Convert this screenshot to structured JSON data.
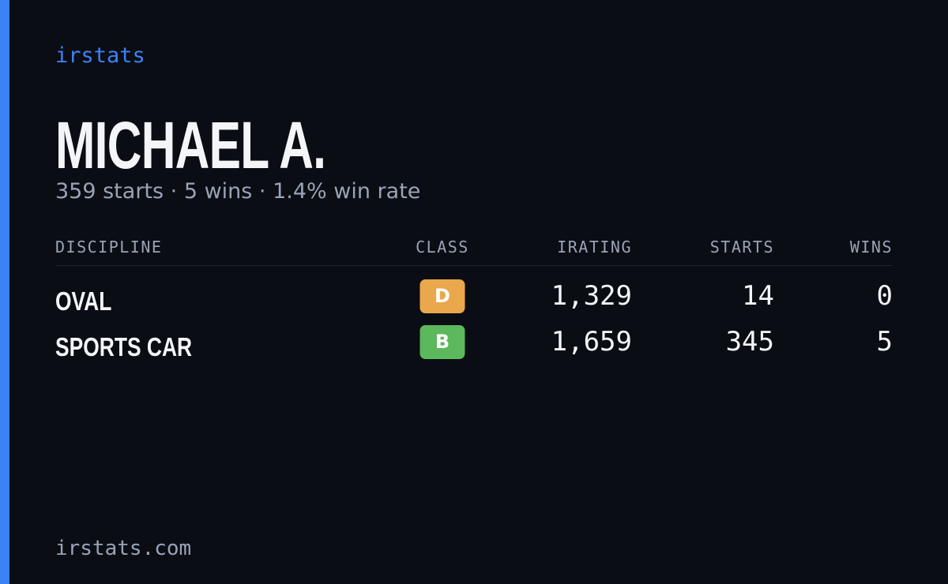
{
  "brand": "irstats",
  "player": {
    "name": "MICHAEL A.",
    "summary": "359 starts · 5 wins · 1.4% win rate"
  },
  "table": {
    "headers": [
      "DISCIPLINE",
      "CLASS",
      "IRATING",
      "STARTS",
      "WINS"
    ],
    "rows": [
      {
        "discipline": "OVAL",
        "class": "D",
        "class_color": "#e9a84c",
        "irating": "1,329",
        "starts": "14",
        "wins": "0"
      },
      {
        "discipline": "SPORTS CAR",
        "class": "B",
        "class_color": "#5cb85c",
        "irating": "1,659",
        "starts": "345",
        "wins": "5"
      }
    ]
  },
  "footer": "irstats.com"
}
